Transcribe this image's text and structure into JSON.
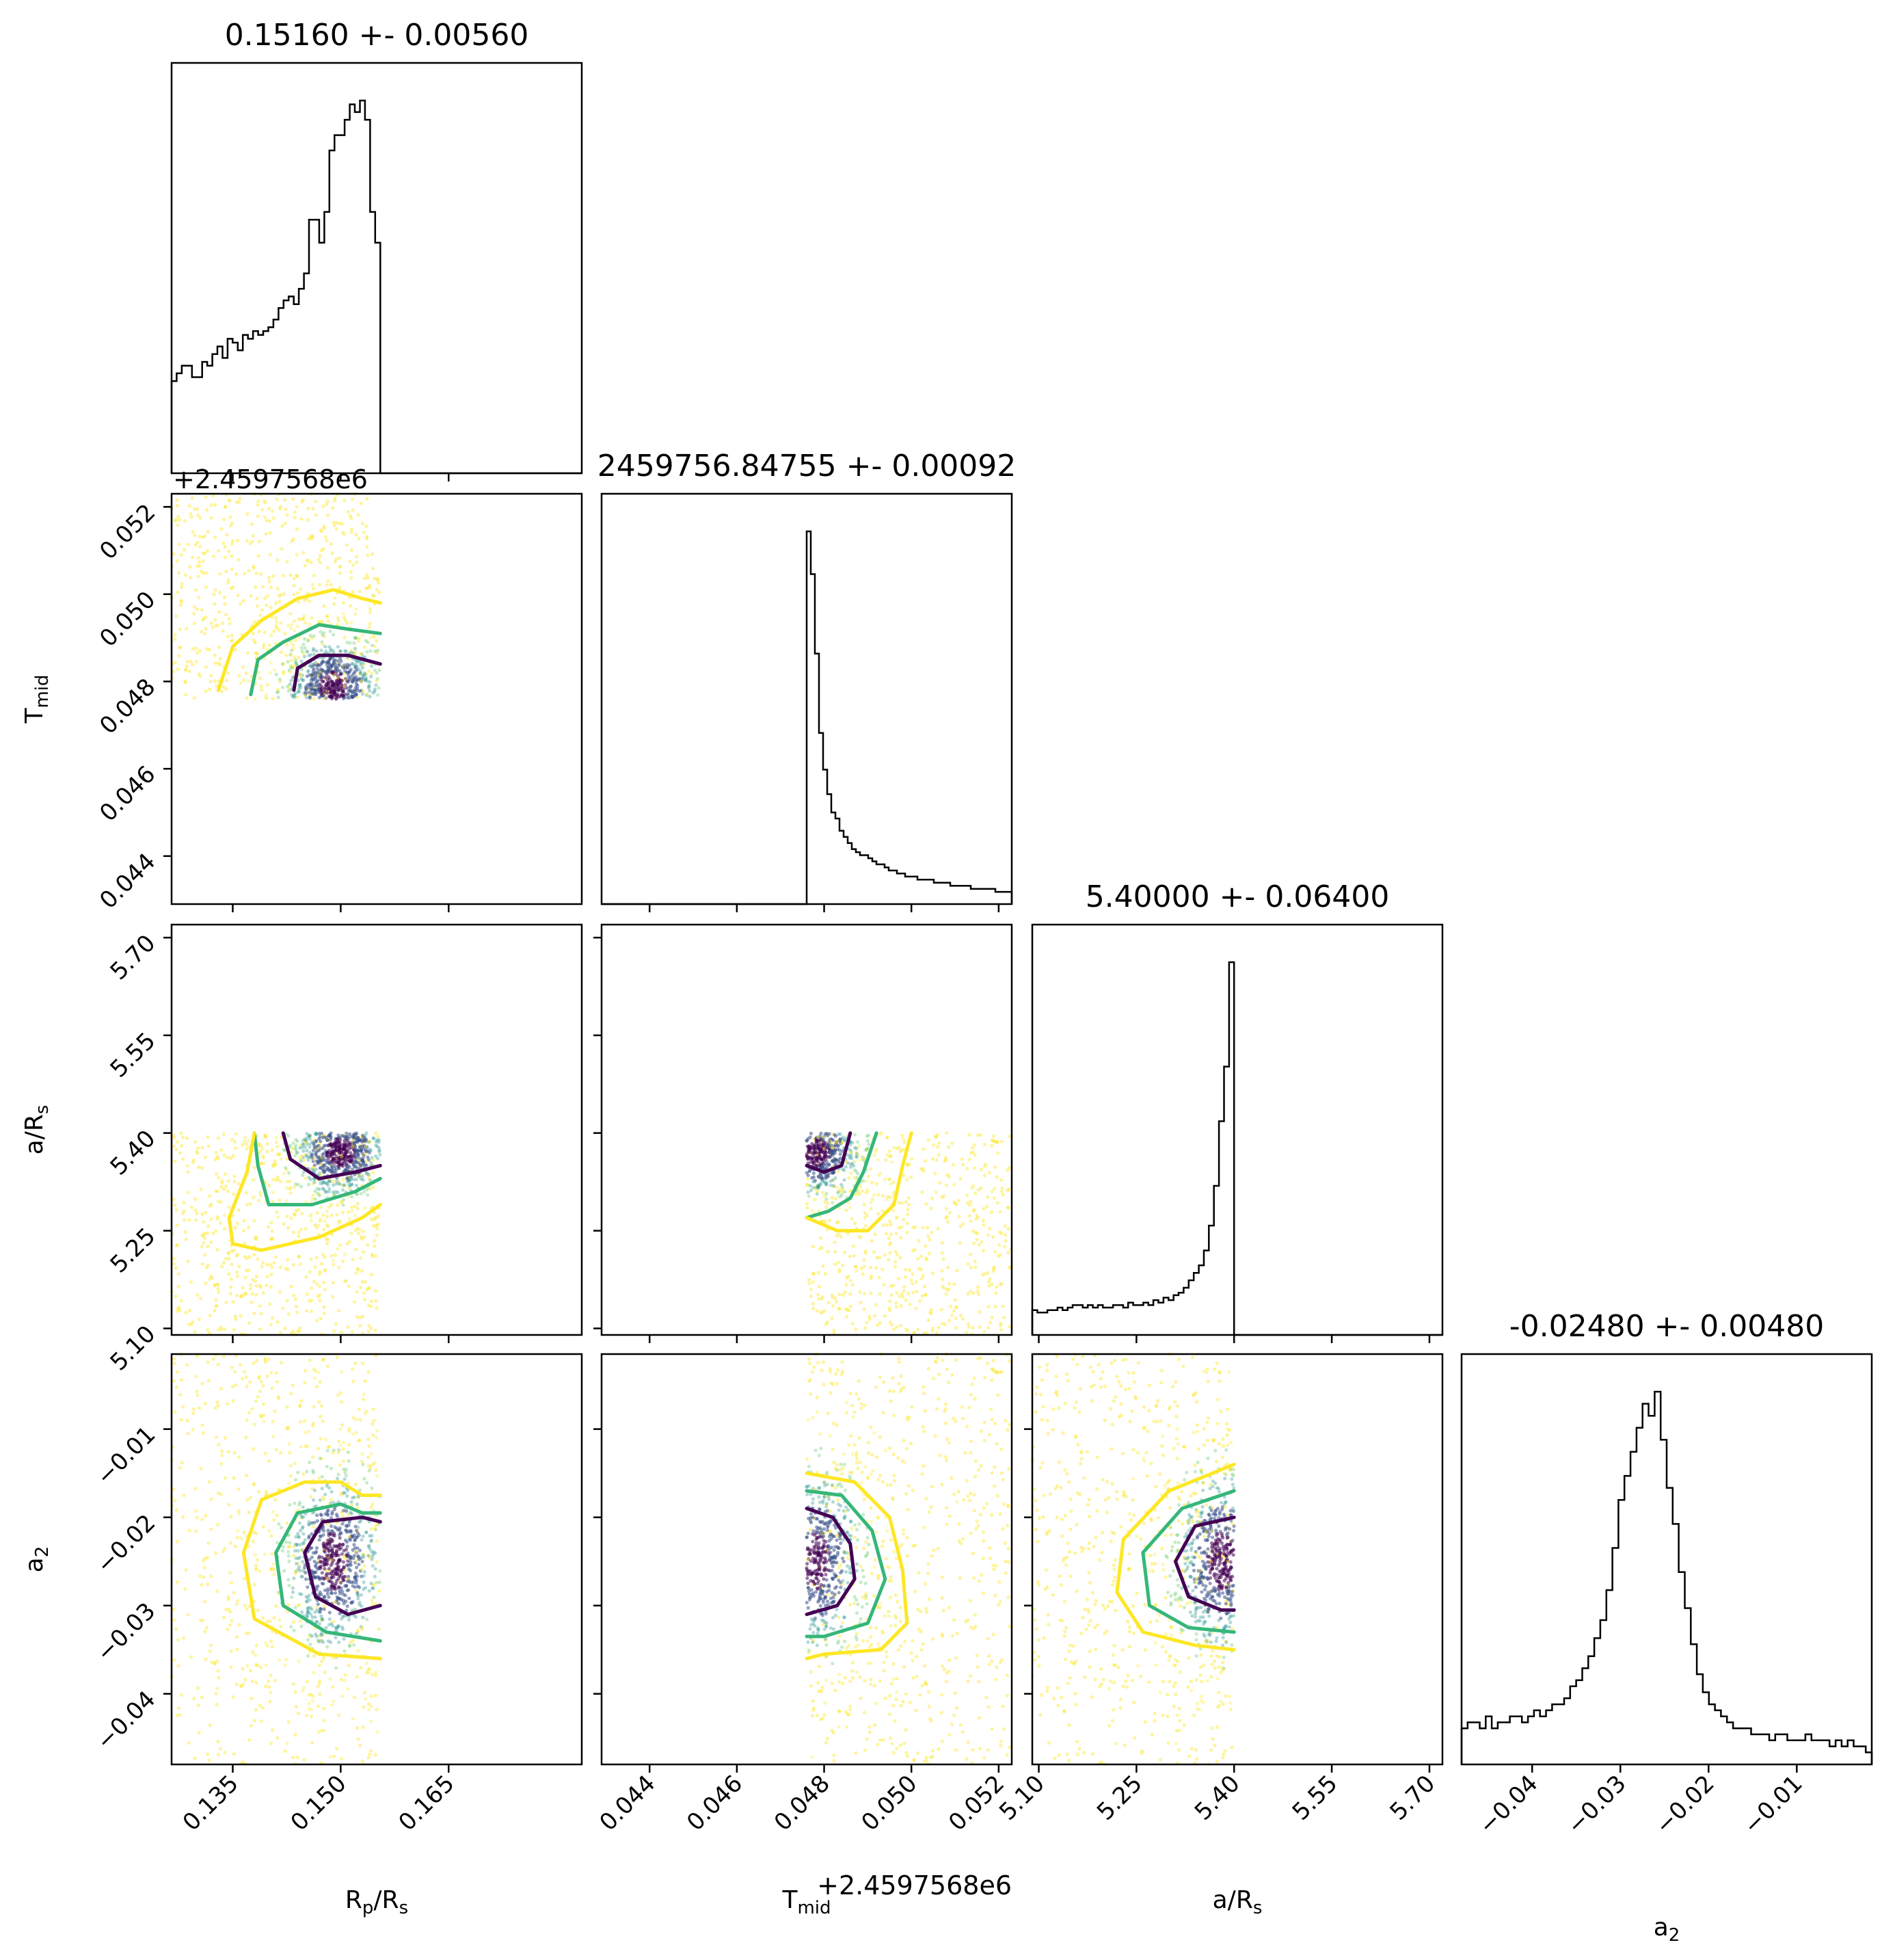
{
  "chart_data": {
    "type": "corner",
    "parameters": [
      {
        "key": "rp",
        "label_main": "R",
        "label_sub": "p",
        "label_tail": "/R",
        "label_sub2": "s",
        "range": [
          0.1265,
          0.1835
        ],
        "ticks": [
          0.135,
          0.15,
          0.165
        ],
        "tick_labels": [
          "0.135",
          "0.150",
          "0.165"
        ],
        "title": "0.15160 +- 0.00560",
        "offset_text": ""
      },
      {
        "key": "tmid",
        "label_main": "T",
        "label_sub": "mid",
        "label_tail": "",
        "label_sub2": "",
        "range": [
          0.0429,
          0.0523
        ],
        "ticks": [
          0.044,
          0.046,
          0.048,
          0.05,
          0.052
        ],
        "tick_labels": [
          "0.044",
          "0.046",
          "0.048",
          "0.050",
          "0.052"
        ],
        "title": "2459756.84755 +- 0.00092",
        "offset_text": "+2.4597568e6"
      },
      {
        "key": "ars",
        "label_main": "a/R",
        "label_sub": "s",
        "label_tail": "",
        "label_sub2": "",
        "range": [
          5.09,
          5.72
        ],
        "ticks": [
          5.1,
          5.25,
          5.4,
          5.55,
          5.7
        ],
        "tick_labels": [
          "5.10",
          "5.25",
          "5.40",
          "5.55",
          "5.70"
        ],
        "title": "5.40000 +- 0.06400",
        "offset_text": ""
      },
      {
        "key": "a2",
        "label_main": "a",
        "label_sub": "2",
        "label_tail": "",
        "label_sub2": "",
        "range": [
          -0.048,
          -0.0015
        ],
        "ticks": [
          -0.04,
          -0.03,
          -0.02,
          -0.01
        ],
        "tick_labels": [
          "−0.04",
          "−0.03",
          "−0.02",
          "−0.01"
        ],
        "title": "-0.02480 +- 0.00480",
        "offset_text": ""
      }
    ],
    "histograms": [
      {
        "param": "rp",
        "bins": [
          0.1265,
          0.1555
        ],
        "counts": [
          24,
          26,
          28,
          28,
          25,
          25,
          29,
          28,
          31,
          33,
          30,
          35,
          34,
          32,
          36,
          35,
          37,
          36,
          37,
          38,
          40,
          43,
          45,
          46,
          44,
          48,
          52,
          66,
          66,
          60,
          68,
          84,
          88,
          88,
          92,
          96,
          94,
          97,
          92,
          68,
          60
        ]
      },
      {
        "param": "tmid",
        "bins": [
          0.0476,
          0.0523
        ],
        "counts": [
          122,
          108,
          82,
          56,
          44,
          36,
          30,
          28,
          24,
          22,
          20,
          18,
          17,
          16,
          16,
          15,
          14,
          13,
          13,
          12,
          11,
          11,
          10,
          10,
          9,
          9,
          9,
          8,
          8,
          8,
          8,
          7,
          7,
          7,
          7,
          6,
          6,
          6,
          6,
          6,
          5,
          5,
          5,
          5,
          5,
          5,
          4,
          4,
          4,
          4
        ]
      },
      {
        "param": "ars",
        "bins": [
          5.09,
          5.4
        ],
        "counts": [
          10,
          9,
          9,
          10,
          10,
          11,
          10,
          11,
          12,
          12,
          11,
          12,
          11,
          12,
          11,
          11,
          12,
          12,
          11,
          13,
          12,
          12,
          13,
          12,
          14,
          13,
          15,
          14,
          16,
          17,
          19,
          22,
          25,
          28,
          34,
          44,
          60,
          86,
          108,
          150
        ]
      },
      {
        "param": "a2",
        "bins": [
          -0.048,
          -0.0015
        ],
        "counts": [
          6,
          7,
          7,
          6,
          8,
          6,
          7,
          7,
          8,
          8,
          7,
          8,
          9,
          8,
          9,
          10,
          10,
          11,
          13,
          14,
          16,
          18,
          21,
          24,
          29,
          36,
          44,
          48,
          52,
          56,
          60,
          58,
          62,
          54,
          46,
          40,
          32,
          26,
          20,
          15,
          12,
          10,
          9,
          8,
          7,
          6,
          6,
          6,
          5,
          5,
          5,
          4,
          5,
          5,
          4,
          4,
          4,
          5,
          4,
          4,
          4,
          3,
          4,
          3,
          4,
          3,
          3,
          2
        ]
      }
    ],
    "scatter_panels": [
      {
        "x": "rp",
        "y": "tmid",
        "x_range": [
          0.1265,
          0.1555
        ],
        "y_range": [
          0.0476,
          0.0523
        ],
        "dense_center": [
          0.149,
          0.0479
        ],
        "contours": [
          {
            "level": "inner",
            "color": "#440154",
            "points": [
              [
                0.1435,
                0.0478
              ],
              [
                0.144,
                0.0483
              ],
              [
                0.147,
                0.0486
              ],
              [
                0.151,
                0.0486
              ],
              [
                0.1555,
                0.0484
              ]
            ]
          },
          {
            "level": "middle",
            "color": "#35b779",
            "points": [
              [
                0.1375,
                0.0477
              ],
              [
                0.1385,
                0.0485
              ],
              [
                0.142,
                0.0489
              ],
              [
                0.147,
                0.0493
              ],
              [
                0.151,
                0.0492
              ],
              [
                0.1555,
                0.0491
              ]
            ]
          },
          {
            "level": "outer",
            "color": "#fde725",
            "points": [
              [
                0.133,
                0.0478
              ],
              [
                0.135,
                0.0488
              ],
              [
                0.139,
                0.0494
              ],
              [
                0.144,
                0.0499
              ],
              [
                0.149,
                0.0501
              ],
              [
                0.153,
                0.0499
              ],
              [
                0.1555,
                0.0498
              ]
            ]
          }
        ]
      },
      {
        "x": "rp",
        "y": "ars",
        "x_range": [
          0.1265,
          0.1555
        ],
        "y_range": [
          5.09,
          5.4
        ],
        "dense_center": [
          0.15,
          5.37
        ],
        "contours": [
          {
            "level": "inner",
            "color": "#440154",
            "points": [
              [
                0.142,
                5.4
              ],
              [
                0.143,
                5.36
              ],
              [
                0.147,
                5.33
              ],
              [
                0.152,
                5.34
              ],
              [
                0.1555,
                5.35
              ]
            ]
          },
          {
            "level": "middle",
            "color": "#35b779",
            "points": [
              [
                0.138,
                5.4
              ],
              [
                0.1385,
                5.35
              ],
              [
                0.14,
                5.29
              ],
              [
                0.146,
                5.29
              ],
              [
                0.152,
                5.31
              ],
              [
                0.1555,
                5.33
              ]
            ]
          },
          {
            "level": "outer",
            "color": "#fde725",
            "points": [
              [
                0.138,
                5.4
              ],
              [
                0.137,
                5.34
              ],
              [
                0.1345,
                5.27
              ],
              [
                0.135,
                5.23
              ],
              [
                0.139,
                5.22
              ],
              [
                0.147,
                5.24
              ],
              [
                0.153,
                5.27
              ],
              [
                0.1555,
                5.29
              ]
            ]
          }
        ]
      },
      {
        "x": "tmid",
        "y": "ars",
        "x_range": [
          0.0476,
          0.0523
        ],
        "y_range": [
          5.09,
          5.4
        ],
        "dense_center": [
          0.0478,
          5.37
        ],
        "contours": [
          {
            "level": "inner",
            "color": "#440154",
            "points": [
              [
                0.0476,
                5.35
              ],
              [
                0.048,
                5.34
              ],
              [
                0.0484,
                5.35
              ],
              [
                0.0486,
                5.4
              ]
            ]
          },
          {
            "level": "middle",
            "color": "#35b779",
            "points": [
              [
                0.0476,
                5.27
              ],
              [
                0.0481,
                5.28
              ],
              [
                0.0486,
                5.3
              ],
              [
                0.0489,
                5.34
              ],
              [
                0.0492,
                5.4
              ]
            ]
          },
          {
            "level": "outer",
            "color": "#fde725",
            "points": [
              [
                0.0476,
                5.27
              ],
              [
                0.0483,
                5.25
              ],
              [
                0.049,
                5.25
              ],
              [
                0.0496,
                5.29
              ],
              [
                0.0498,
                5.35
              ],
              [
                0.05,
                5.4
              ]
            ]
          }
        ]
      },
      {
        "x": "rp",
        "y": "a2",
        "x_range": [
          0.1265,
          0.1555
        ],
        "y_range": [
          -0.048,
          -0.0015
        ],
        "dense_center": [
          0.149,
          -0.025
        ],
        "contours": [
          {
            "level": "inner",
            "color": "#440154",
            "points": [
              [
                0.1555,
                -0.03
              ],
              [
                0.151,
                -0.031
              ],
              [
                0.1465,
                -0.029
              ],
              [
                0.145,
                -0.024
              ],
              [
                0.1475,
                -0.0205
              ],
              [
                0.153,
                -0.02
              ],
              [
                0.1555,
                -0.0205
              ]
            ]
          },
          {
            "level": "middle",
            "color": "#35b779",
            "points": [
              [
                0.1555,
                -0.034
              ],
              [
                0.148,
                -0.033
              ],
              [
                0.142,
                -0.03
              ],
              [
                0.141,
                -0.024
              ],
              [
                0.144,
                -0.0195
              ],
              [
                0.15,
                -0.0185
              ],
              [
                0.153,
                -0.0195
              ],
              [
                0.1555,
                -0.0195
              ]
            ]
          },
          {
            "level": "outer",
            "color": "#fde725",
            "points": [
              [
                0.1555,
                -0.036
              ],
              [
                0.147,
                -0.0355
              ],
              [
                0.138,
                -0.0315
              ],
              [
                0.1365,
                -0.024
              ],
              [
                0.139,
                -0.018
              ],
              [
                0.145,
                -0.016
              ],
              [
                0.15,
                -0.016
              ],
              [
                0.153,
                -0.0175
              ],
              [
                0.1555,
                -0.0175
              ]
            ]
          }
        ]
      },
      {
        "x": "tmid",
        "y": "a2",
        "x_range": [
          0.0476,
          0.0523
        ],
        "y_range": [
          -0.048,
          -0.0015
        ],
        "dense_center": [
          0.0478,
          -0.025
        ],
        "contours": [
          {
            "level": "inner",
            "color": "#440154",
            "points": [
              [
                0.0476,
                -0.019
              ],
              [
                0.0482,
                -0.02
              ],
              [
                0.0486,
                -0.023
              ],
              [
                0.0487,
                -0.027
              ],
              [
                0.0483,
                -0.03
              ],
              [
                0.0476,
                -0.031
              ]
            ]
          },
          {
            "level": "middle",
            "color": "#35b779",
            "points": [
              [
                0.0476,
                -0.017
              ],
              [
                0.0484,
                -0.0175
              ],
              [
                0.0491,
                -0.0215
              ],
              [
                0.0494,
                -0.027
              ],
              [
                0.049,
                -0.032
              ],
              [
                0.048,
                -0.0335
              ],
              [
                0.0476,
                -0.0335
              ]
            ]
          },
          {
            "level": "outer",
            "color": "#fde725",
            "points": [
              [
                0.0476,
                -0.015
              ],
              [
                0.0487,
                -0.016
              ],
              [
                0.0495,
                -0.02
              ],
              [
                0.0498,
                -0.026
              ],
              [
                0.0499,
                -0.032
              ],
              [
                0.0493,
                -0.035
              ],
              [
                0.048,
                -0.0355
              ],
              [
                0.0476,
                -0.036
              ]
            ]
          }
        ]
      },
      {
        "x": "ars",
        "y": "a2",
        "x_range": [
          5.09,
          5.4
        ],
        "y_range": [
          -0.048,
          -0.0015
        ],
        "dense_center": [
          5.38,
          -0.025
        ],
        "contours": [
          {
            "level": "inner",
            "color": "#440154",
            "points": [
              [
                5.4,
                -0.02
              ],
              [
                5.34,
                -0.021
              ],
              [
                5.31,
                -0.025
              ],
              [
                5.33,
                -0.029
              ],
              [
                5.38,
                -0.0305
              ],
              [
                5.4,
                -0.0305
              ]
            ]
          },
          {
            "level": "middle",
            "color": "#35b779",
            "points": [
              [
                5.4,
                -0.017
              ],
              [
                5.32,
                -0.019
              ],
              [
                5.26,
                -0.024
              ],
              [
                5.27,
                -0.03
              ],
              [
                5.33,
                -0.0325
              ],
              [
                5.4,
                -0.033
              ]
            ]
          },
          {
            "level": "outer",
            "color": "#fde725",
            "points": [
              [
                5.4,
                -0.014
              ],
              [
                5.3,
                -0.017
              ],
              [
                5.23,
                -0.0225
              ],
              [
                5.22,
                -0.0285
              ],
              [
                5.26,
                -0.033
              ],
              [
                5.34,
                -0.0345
              ],
              [
                5.4,
                -0.035
              ]
            ]
          }
        ]
      }
    ],
    "colors": {
      "histogram": "#000000",
      "inner": "#440154",
      "middle": "#35b779",
      "outer": "#fde725",
      "scatter_low": "#fde725",
      "scatter_mid": "#21918c",
      "scatter_high": "#440154"
    }
  }
}
